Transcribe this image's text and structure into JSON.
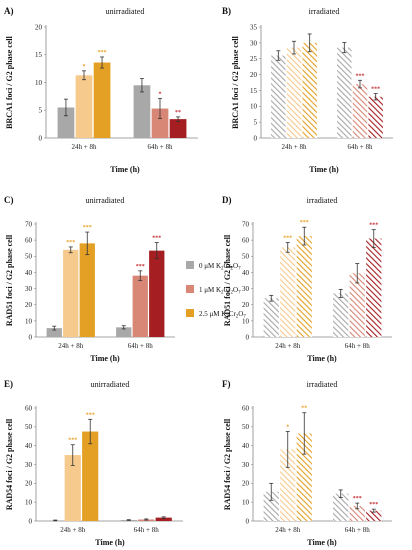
{
  "chart_data": [
    {
      "type": "bar",
      "panel_label": "A)",
      "title": "unirradiated",
      "ylabel": "BRCA1 foci / G2 phase cell",
      "xlabel": "Time (h)",
      "categories": [
        "24h + 8h",
        "64h + 8h"
      ],
      "ylim": [
        0,
        20
      ],
      "yticks": [
        0,
        5,
        10,
        15,
        20
      ],
      "hatched": false,
      "series": [
        {
          "values": [
            5.5,
            9.5
          ],
          "errors": [
            1.5,
            1.2
          ],
          "sig": [
            "",
            ""
          ]
        },
        {
          "values": [
            11.3,
            5.3
          ],
          "errors": [
            0.8,
            1.8
          ],
          "sig": [
            "*",
            "*"
          ]
        },
        {
          "values": [
            13.6,
            3.4
          ],
          "errors": [
            1.0,
            0.4
          ],
          "sig": [
            "***",
            "**"
          ]
        }
      ]
    },
    {
      "type": "bar",
      "panel_label": "B)",
      "title": "irradiated",
      "ylabel": "BRCA1 foci / G2 phase cell",
      "xlabel": "Time (h)",
      "categories": [
        "24h + 8h",
        "64h + 8h"
      ],
      "ylim": [
        0,
        35
      ],
      "yticks": [
        0,
        5,
        10,
        15,
        20,
        25,
        30,
        35
      ],
      "hatched": true,
      "series": [
        {
          "values": [
            26.0,
            28.5
          ],
          "errors": [
            1.5,
            1.6
          ],
          "sig": [
            "",
            ""
          ]
        },
        {
          "values": [
            28.5,
            17.0
          ],
          "errors": [
            2.0,
            1.2
          ],
          "sig": [
            "",
            "***"
          ]
        },
        {
          "values": [
            30.0,
            13.0
          ],
          "errors": [
            2.8,
            1.0
          ],
          "sig": [
            "",
            "***"
          ]
        }
      ]
    },
    {
      "type": "bar",
      "panel_label": "C)",
      "title": "unirradiated",
      "ylabel": "RAD51 foci / G2 phase cell",
      "xlabel": "Time (h)",
      "categories": [
        "24h + 8h",
        "64h + 8h"
      ],
      "ylim": [
        0,
        70
      ],
      "yticks": [
        0,
        10,
        20,
        30,
        40,
        50,
        60,
        70
      ],
      "hatched": false,
      "series": [
        {
          "values": [
            5.5,
            6.0
          ],
          "errors": [
            1.2,
            1.0
          ],
          "sig": [
            "",
            ""
          ]
        },
        {
          "values": [
            54.0,
            38.0
          ],
          "errors": [
            1.8,
            3.0
          ],
          "sig": [
            "***",
            "***"
          ]
        },
        {
          "values": [
            58.0,
            53.5
          ],
          "errors": [
            7.0,
            5.0
          ],
          "sig": [
            "***",
            "***"
          ]
        }
      ]
    },
    {
      "type": "bar",
      "panel_label": "D)",
      "title": "irradiated",
      "ylabel": "RAD51 foci / G2 phase cell",
      "xlabel": "Time (h)",
      "categories": [
        "24h + 8h",
        "64h + 8h"
      ],
      "ylim": [
        0,
        70
      ],
      "yticks": [
        0,
        10,
        20,
        30,
        40,
        50,
        60,
        70
      ],
      "hatched": true,
      "series": [
        {
          "values": [
            24.0,
            27.0
          ],
          "errors": [
            1.8,
            2.5
          ],
          "sig": [
            "",
            ""
          ]
        },
        {
          "values": [
            55.5,
            39.5
          ],
          "errors": [
            3.0,
            6.0
          ],
          "sig": [
            "***",
            ""
          ]
        },
        {
          "values": [
            62.5,
            61.0
          ],
          "errors": [
            5.5,
            5.5
          ],
          "sig": [
            "***",
            "***"
          ]
        }
      ]
    },
    {
      "type": "bar",
      "panel_label": "E)",
      "title": "unirradiated",
      "ylabel": "RAD54 foci / G2 phase cell",
      "xlabel": "Time (h)",
      "categories": [
        "24h + 8h",
        "64h + 8h"
      ],
      "ylim": [
        0,
        60
      ],
      "yticks": [
        0,
        10,
        20,
        30,
        40,
        50,
        60
      ],
      "hatched": false,
      "series": [
        {
          "values": [
            0.3,
            0.5
          ],
          "errors": [
            0.2,
            0.2
          ],
          "sig": [
            "",
            ""
          ]
        },
        {
          "values": [
            35.0,
            0.8
          ],
          "errors": [
            5.5,
            0.3
          ],
          "sig": [
            "***",
            ""
          ]
        },
        {
          "values": [
            47.5,
            1.8
          ],
          "errors": [
            6.5,
            0.4
          ],
          "sig": [
            "***",
            ""
          ]
        }
      ]
    },
    {
      "type": "bar",
      "panel_label": "F)",
      "title": "irradiated",
      "ylabel": "RAD54 foci / G2 phase cell",
      "xlabel": "Time (h)",
      "categories": [
        "24h + 8h",
        "64h + 8h"
      ],
      "ylim": [
        0,
        60
      ],
      "yticks": [
        0,
        10,
        20,
        30,
        40,
        50,
        60
      ],
      "hatched": true,
      "series": [
        {
          "values": [
            15.5,
            14.5
          ],
          "errors": [
            4.5,
            2.0
          ],
          "sig": [
            "",
            ""
          ]
        },
        {
          "values": [
            38.0,
            8.0
          ],
          "errors": [
            9.5,
            1.5
          ],
          "sig": [
            "*",
            "***"
          ]
        },
        {
          "values": [
            46.5,
            5.5
          ],
          "errors": [
            11.0,
            0.8
          ],
          "sig": [
            "**",
            "***"
          ]
        }
      ]
    }
  ],
  "legend": {
    "placement": "center",
    "items": [
      {
        "label": "0 μM K",
        "sub1": "2",
        "mid": "Cr",
        "sub2": "2",
        "end": "O",
        "sub3": "7"
      },
      {
        "label": "1 μM K",
        "sub1": "2",
        "mid": "Cr",
        "sub2": "2",
        "end": "O",
        "sub3": "7"
      },
      {
        "label": "2.5 μM K",
        "sub1": "2",
        "mid": "Cr",
        "sub2": "2",
        "end": "O",
        "sub3": "7"
      }
    ]
  },
  "colors": {
    "control": "#a8a8a8",
    "low_24": "#f6c98c",
    "high_24": "#e3a025",
    "low_64": "#d88676",
    "high_64": "#a51e22",
    "sig_24": "#e8a020",
    "sig_64": "#c0282c",
    "axis": "#888888"
  }
}
